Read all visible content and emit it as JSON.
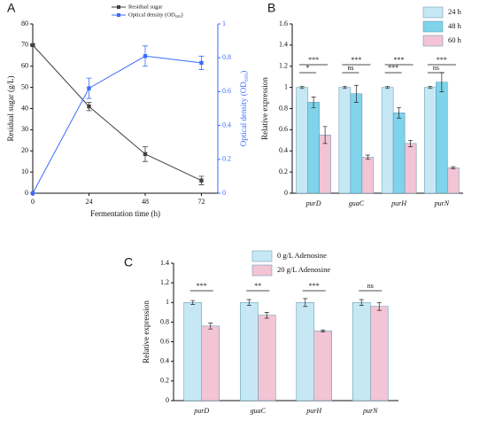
{
  "chart_data": [
    {
      "type": "line",
      "panel": "A",
      "xlabel": "Fermentation time (h)",
      "ylabel": "Residual sugar (g/L)",
      "y2label": "Optical density (OD₆₀₀)",
      "x": [
        0,
        24,
        48,
        72
      ],
      "xlim": [
        0,
        79
      ],
      "xticks": [
        0,
        24,
        48,
        72
      ],
      "ylim": [
        0,
        80
      ],
      "yticks": [
        0,
        10,
        20,
        30,
        40,
        50,
        60,
        70,
        80
      ],
      "y2lim": [
        0,
        1
      ],
      "y2ticks": [
        0,
        0.2,
        0.4,
        0.6,
        0.8,
        1
      ],
      "series": [
        {
          "name": "Residual sugar",
          "color": "#404040",
          "values": [
            70,
            41,
            18.5,
            6
          ],
          "errors": [
            0.5,
            2,
            3.5,
            2
          ]
        },
        {
          "name": "Optical density (OD₆₀₀)",
          "color": "#3b6bff",
          "axis": "y2",
          "values": [
            0,
            0.62,
            0.81,
            0.77
          ],
          "errors": [
            0,
            0.06,
            0.06,
            0.04
          ]
        }
      ]
    },
    {
      "type": "bar",
      "panel": "B",
      "ylabel": "Relative expression",
      "categories": [
        "purD",
        "guaC",
        "purH",
        "purN"
      ],
      "ylim": [
        0,
        1.6
      ],
      "yticks": [
        0,
        0.2,
        0.4,
        0.6,
        0.8,
        1,
        1.2,
        1.4,
        1.6
      ],
      "series": [
        {
          "name": "24 h",
          "color": "#c6e8f5",
          "values": [
            1,
            1,
            1,
            1
          ],
          "errors": [
            0.01,
            0.01,
            0.01,
            0.01
          ]
        },
        {
          "name": "48 h",
          "color": "#7fd3ea",
          "values": [
            0.86,
            0.94,
            0.76,
            1.05
          ],
          "errors": [
            0.05,
            0.08,
            0.05,
            0.09
          ]
        },
        {
          "name": "60 h",
          "color": "#f2c4d4",
          "values": [
            0.55,
            0.34,
            0.47,
            0.24
          ],
          "errors": [
            0.08,
            0.02,
            0.03,
            0.01
          ]
        }
      ],
      "significance": [
        [
          "*",
          "***"
        ],
        [
          "ns",
          "***"
        ],
        [
          "***",
          "***"
        ],
        [
          "ns",
          "***"
        ]
      ]
    },
    {
      "type": "bar",
      "panel": "C",
      "ylabel": "Relative expression",
      "categories": [
        "purD",
        "guaC",
        "purH",
        "purN"
      ],
      "ylim": [
        0,
        1.4
      ],
      "yticks": [
        0,
        0.2,
        0.4,
        0.6,
        0.8,
        1,
        1.2,
        1.4
      ],
      "series": [
        {
          "name": "0 g/L Adenosine",
          "color": "#c6e8f5",
          "values": [
            1,
            1,
            1,
            1
          ],
          "errors": [
            0.02,
            0.03,
            0.04,
            0.03
          ]
        },
        {
          "name": "20 g/L Adenosine",
          "color": "#f2c4d4",
          "values": [
            0.76,
            0.87,
            0.71,
            0.96
          ],
          "errors": [
            0.03,
            0.03,
            0.01,
            0.04
          ]
        }
      ],
      "significance": [
        [
          "***"
        ],
        [
          "**"
        ],
        [
          "***"
        ],
        [
          "ns"
        ]
      ]
    }
  ]
}
